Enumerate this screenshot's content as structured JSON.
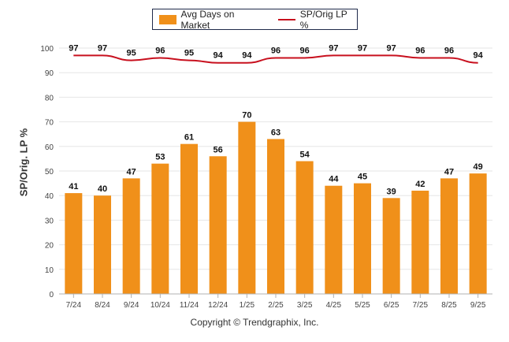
{
  "legend": {
    "bar_label": "Avg Days on Market",
    "line_label": "SP/Orig LP %"
  },
  "footer": {
    "copyright": "Copyright © Trendgraphix, Inc."
  },
  "colors": {
    "bar": "#f0901a",
    "line": "#c8101e",
    "grid": "#e6e6e6",
    "axis": "#b0b0b0"
  },
  "chart_data": {
    "type": "bar",
    "categories": [
      "7/24",
      "8/24",
      "9/24",
      "10/24",
      "11/24",
      "12/24",
      "1/25",
      "2/25",
      "3/25",
      "4/25",
      "5/25",
      "6/25",
      "7/25",
      "8/25",
      "9/25"
    ],
    "series": [
      {
        "name": "Avg Days on Market",
        "type": "bar",
        "values": [
          41,
          40,
          47,
          53,
          61,
          56,
          70,
          63,
          54,
          44,
          45,
          39,
          42,
          47,
          49
        ]
      },
      {
        "name": "SP/Orig LP %",
        "type": "line",
        "values": [
          97,
          97,
          95,
          96,
          95,
          94,
          94,
          96,
          96,
          97,
          97,
          97,
          96,
          96,
          94
        ]
      }
    ],
    "ylabel": "SP/Orig. LP %",
    "xlabel": "",
    "ylim": [
      0,
      100
    ],
    "yticks": [
      0,
      10,
      20,
      30,
      40,
      50,
      60,
      70,
      80,
      90,
      100
    ],
    "grid": true,
    "legend": "top-center"
  }
}
